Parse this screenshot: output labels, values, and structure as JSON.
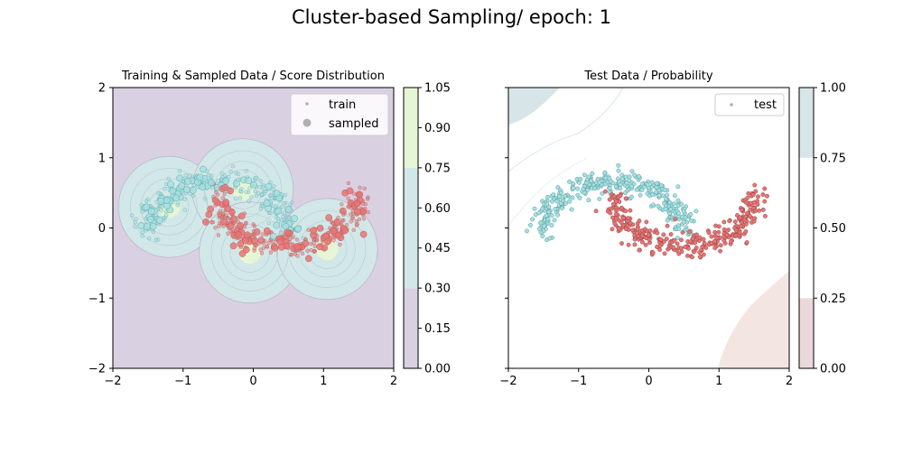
{
  "figure": {
    "title": "Cluster-based Sampling/ epoch: 1"
  },
  "chart_data": [
    {
      "type": "scatter",
      "title": "Training & Sampled Data / Score Distribution",
      "xlim": [
        -2,
        2
      ],
      "ylim": [
        -2,
        2
      ],
      "xticks": [
        "−2",
        "−1",
        "0",
        "1",
        "2"
      ],
      "yticks": [
        "−2",
        "−1",
        "0",
        "1",
        "2"
      ],
      "legend": {
        "location": "top-right",
        "entries": [
          "train",
          "sampled"
        ]
      },
      "background": "score distribution (filled contours) around cluster centers",
      "cluster_centers": [
        [
          -1.2,
          0.3
        ],
        [
          -0.15,
          0.55
        ],
        [
          -0.05,
          -0.35
        ],
        [
          1.05,
          -0.3
        ]
      ],
      "colorbar": {
        "ticks": [
          "0.00",
          "0.15",
          "0.30",
          "0.45",
          "0.60",
          "0.75",
          "0.90",
          "1.05"
        ],
        "range": [
          0,
          1.05
        ],
        "bands": [
          {
            "from": 0,
            "to": 0.3,
            "color": "#d9d1e2"
          },
          {
            "from": 0.3,
            "to": 0.75,
            "color": "#d2e7e8"
          },
          {
            "from": 0.75,
            "to": 1.05,
            "color": "#e6f5d6"
          }
        ]
      },
      "series": [
        {
          "name": "train (class 0)",
          "color": "#a5e0e0",
          "shape": "upper moon"
        },
        {
          "name": "train (class 1)",
          "color": "#e57575",
          "shape": "lower moon"
        }
      ]
    },
    {
      "type": "scatter",
      "title": "Test Data / Probability",
      "xlim": [
        -2,
        2
      ],
      "ylim": [
        -2,
        2
      ],
      "xticks": [
        "−2",
        "−1",
        "0",
        "1",
        "2"
      ],
      "legend": {
        "location": "top-right",
        "entries": [
          "test"
        ]
      },
      "colorbar": {
        "ticks": [
          "0.00",
          "0.25",
          "0.50",
          "0.75",
          "1.00"
        ],
        "range": [
          0,
          1
        ],
        "bands": [
          {
            "from": 0,
            "to": 0.25,
            "color": "#ead8db"
          },
          {
            "from": 0.25,
            "to": 0.75,
            "color": "#ffffff"
          },
          {
            "from": 0.75,
            "to": 1.0,
            "color": "#d7e5e8"
          }
        ]
      },
      "series": [
        {
          "name": "test (class 0)",
          "color": "#a5e0e0",
          "shape": "upper moon"
        },
        {
          "name": "test (class 1)",
          "color": "#e57575",
          "shape": "lower moon"
        }
      ]
    }
  ]
}
